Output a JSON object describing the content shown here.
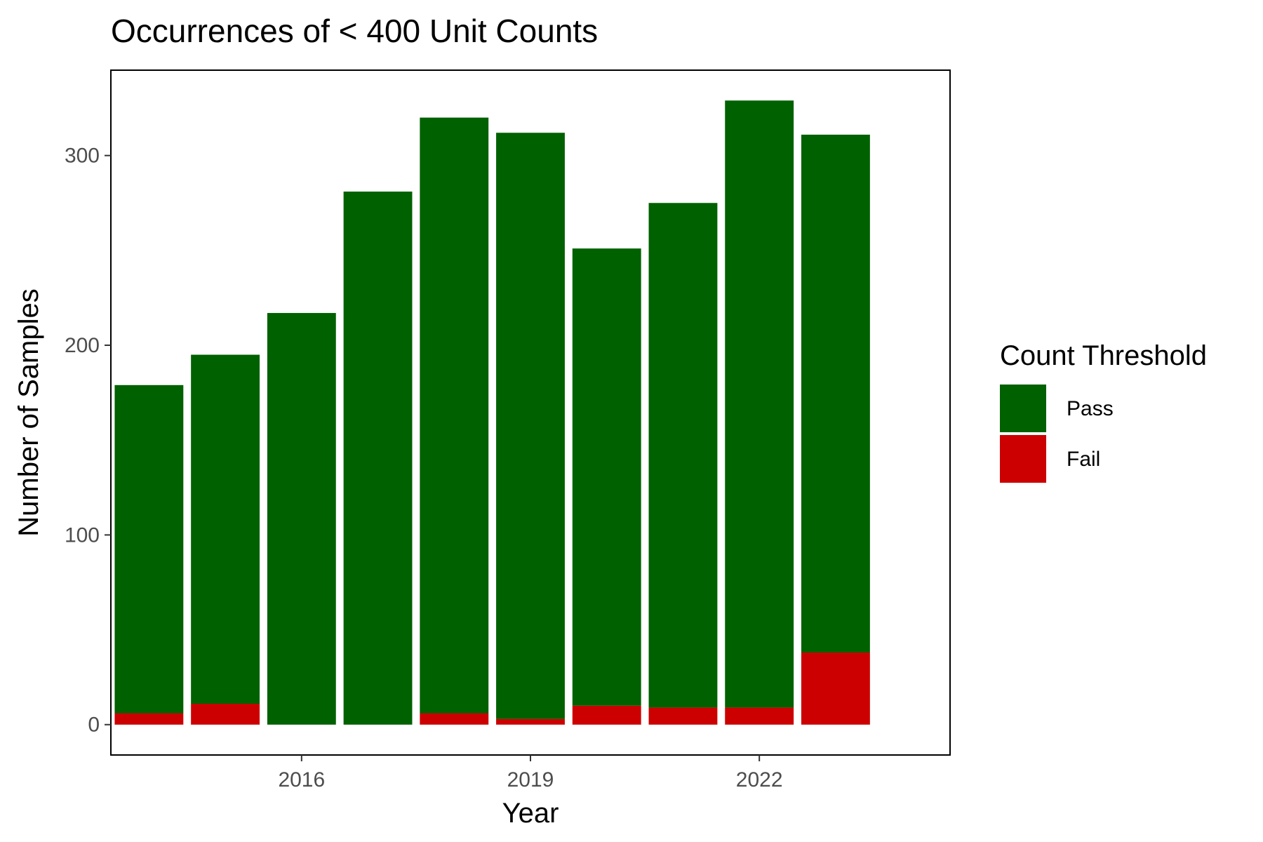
{
  "chart_data": {
    "type": "bar",
    "stacked": true,
    "title": "Occurrences of < 400 Unit Counts",
    "xlabel": "Year",
    "ylabel": "Number of Samples",
    "categories": [
      2014,
      2015,
      2016,
      2017,
      2018,
      2019,
      2020,
      2021,
      2022,
      2023
    ],
    "x_ticks": [
      2016,
      2019,
      2022
    ],
    "y_ticks": [
      0,
      100,
      200,
      300
    ],
    "ylim": [
      -16,
      345
    ],
    "xlim": [
      2013.5,
      2024.5
    ],
    "series": [
      {
        "name": "Fail",
        "color": "#CC0000",
        "values": [
          6,
          11,
          0,
          0,
          6,
          3,
          10,
          9,
          9,
          38
        ]
      },
      {
        "name": "Pass",
        "color": "#006100",
        "values": [
          173,
          184,
          217,
          281,
          314,
          309,
          241,
          266,
          320,
          273
        ]
      }
    ],
    "legend": {
      "title": "Count Threshold",
      "position": "right",
      "items": [
        {
          "label": "Pass",
          "color": "#006100"
        },
        {
          "label": "Fail",
          "color": "#CC0000"
        }
      ]
    },
    "grid": false
  }
}
